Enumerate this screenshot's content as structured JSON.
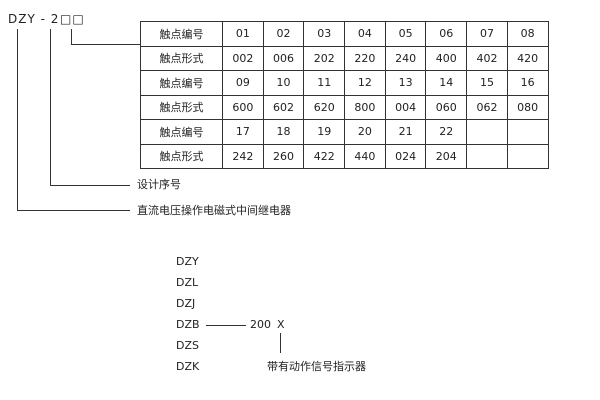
{
  "model": {
    "prefix": "DZY - 2",
    "boxes": "□□"
  },
  "table": {
    "rows": [
      {
        "label": "触点编号",
        "cells": [
          "01",
          "02",
          "03",
          "04",
          "05",
          "06",
          "07",
          "08"
        ]
      },
      {
        "label": "触点形式",
        "cells": [
          "002",
          "006",
          "202",
          "220",
          "240",
          "400",
          "402",
          "420"
        ]
      },
      {
        "label": "触点编号",
        "cells": [
          "09",
          "10",
          "11",
          "12",
          "13",
          "14",
          "15",
          "16"
        ]
      },
      {
        "label": "触点形式",
        "cells": [
          "600",
          "602",
          "620",
          "800",
          "004",
          "060",
          "062",
          "080"
        ]
      },
      {
        "label": "触点编号",
        "cells": [
          "17",
          "18",
          "19",
          "20",
          "21",
          "22",
          "",
          ""
        ]
      },
      {
        "label": "触点形式",
        "cells": [
          "242",
          "260",
          "422",
          "440",
          "024",
          "204",
          "",
          ""
        ]
      }
    ]
  },
  "legend": {
    "design_no": "设计序号",
    "relay_type": "直流电压操作电磁式中间继电器"
  },
  "variants": {
    "list": [
      "DZY",
      "DZL",
      "DZJ",
      "DZB",
      "DZS",
      "DZK"
    ],
    "code": "200",
    "suffix": "X",
    "suffix_note": "带有动作信号指示器"
  }
}
